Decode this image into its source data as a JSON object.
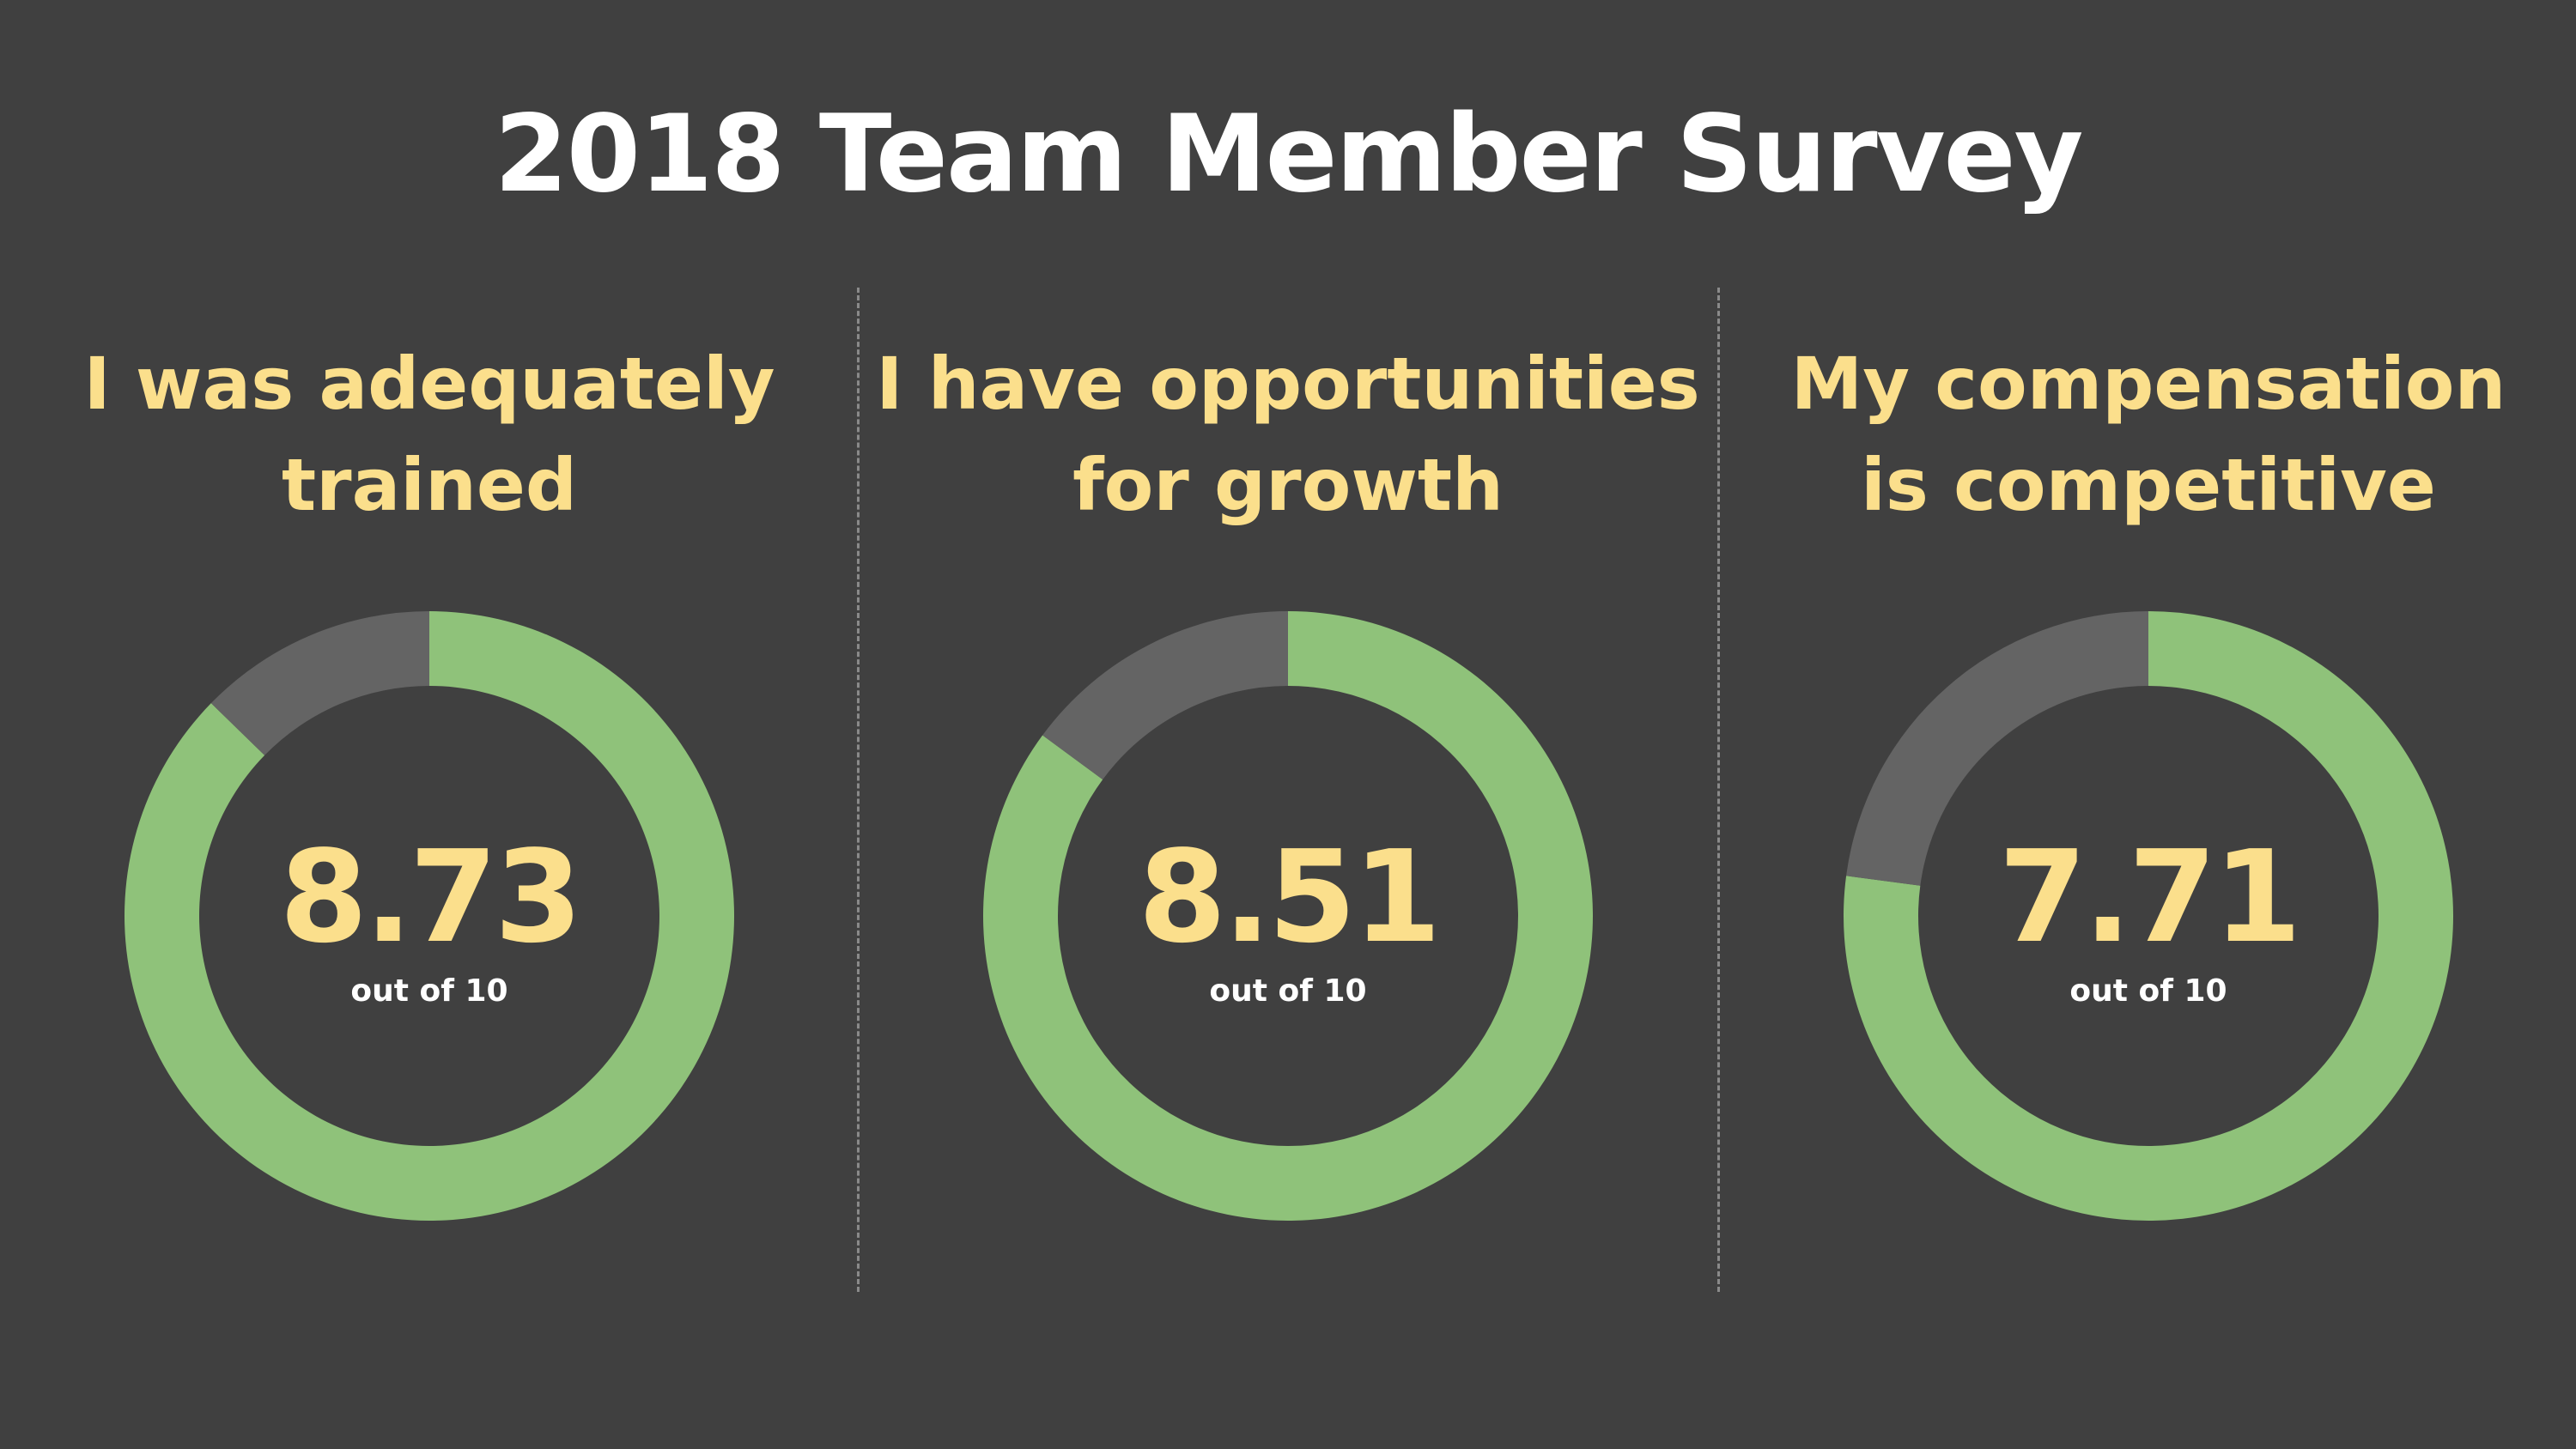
{
  "title": "2018 Team Member Survey",
  "colors": {
    "background": "#404040",
    "filled": "#8fc27a",
    "remainder": "#646464",
    "accent_text": "#fbdf8c",
    "title_text": "#ffffff",
    "divider": "#8a8a8a"
  },
  "chart_data": [
    {
      "type": "pie",
      "title": "I was adequately trained",
      "title_lines": [
        "I was adequately",
        "trained"
      ],
      "value": 8.73,
      "value_label": "8.73",
      "max": 10,
      "subtitle": "out of 10",
      "donut": true
    },
    {
      "type": "pie",
      "title": "I have opportunities for growth",
      "title_lines": [
        "I have opportunities",
        "for growth"
      ],
      "value": 8.51,
      "value_label": "8.51",
      "max": 10,
      "subtitle": "out of 10",
      "donut": true
    },
    {
      "type": "pie",
      "title": "My compensation is competitive",
      "title_lines": [
        "My compensation",
        "is competitive"
      ],
      "value": 7.71,
      "value_label": "7.71",
      "max": 10,
      "subtitle": "out of 10",
      "donut": true
    }
  ]
}
